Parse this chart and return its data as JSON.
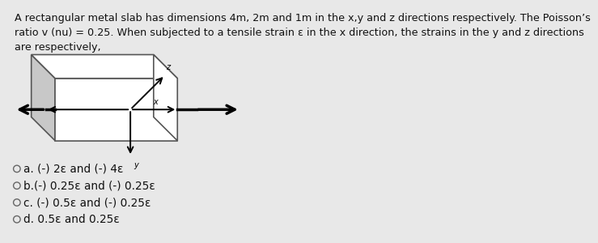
{
  "title_text": "A rectangular metal slab has dimensions 4m, 2m and 1m in the x,y and z directions respectively. The Poisson’s\nratio v (nu) = 0.25. When subjected to a tensile strain ε in the x direction, the strains in the y and z directions\nare respectively,",
  "options": [
    "a. (-) 2ε and (-) 4ε",
    "b.(-) 0.25ε and (-) 0.25ε",
    "c. (-) 0.5ε and (-) 0.25ε",
    "d. 0.5ε and 0.25ε"
  ],
  "bg_color": "#e8e8e8",
  "text_color": "#111111",
  "box_face_color": "#ffffff",
  "box_left_face_color": "#c8c8c8",
  "box_edge_color": "#555555",
  "title_fontsize": 9.2,
  "option_fontsize": 9.8
}
